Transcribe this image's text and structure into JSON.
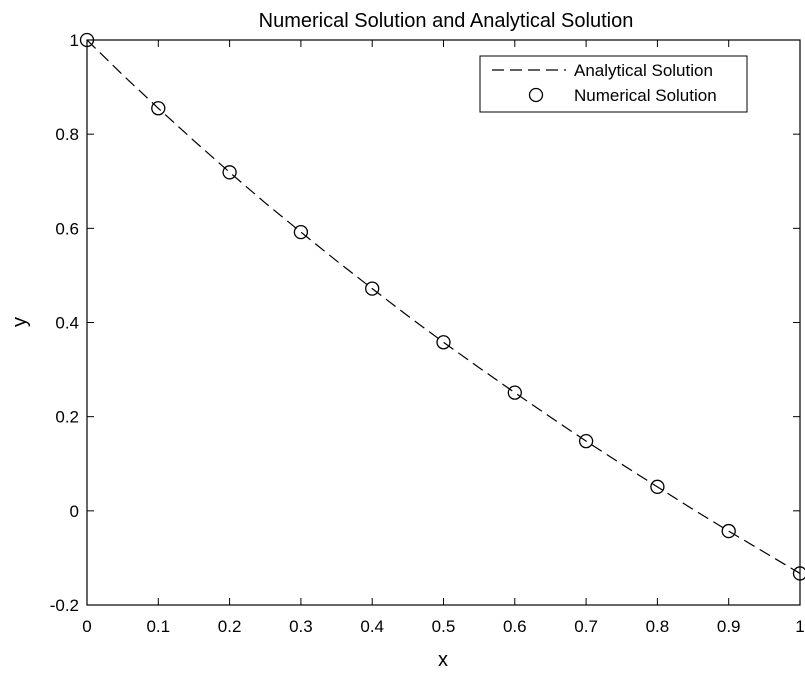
{
  "chart_data": {
    "type": "line",
    "title": "Numerical Solution and Analytical Solution",
    "xlabel": "x",
    "ylabel": "y",
    "xlim": [
      0,
      1
    ],
    "ylim": [
      -0.2,
      1
    ],
    "grid": false,
    "legend_position": "top-right",
    "x_ticks": [
      "0",
      "0.1",
      "0.2",
      "0.3",
      "0.4",
      "0.5",
      "0.6",
      "0.7",
      "0.8",
      "0.9",
      "1"
    ],
    "y_ticks": [
      "-0.2",
      "0",
      "0.2",
      "0.4",
      "0.6",
      "0.8",
      "1"
    ],
    "series": [
      {
        "name": "Analytical Solution",
        "style": "dashed-line",
        "color": "#000000",
        "x": [
          0,
          0.05,
          0.1,
          0.15,
          0.2,
          0.25,
          0.3,
          0.35,
          0.4,
          0.45,
          0.5,
          0.55,
          0.6,
          0.65,
          0.7,
          0.75,
          0.8,
          0.85,
          0.9,
          0.95,
          1.0
        ],
        "y": [
          1.0,
          0.926,
          0.855,
          0.786,
          0.719,
          0.654,
          0.592,
          0.531,
          0.472,
          0.414,
          0.358,
          0.304,
          0.251,
          0.199,
          0.148,
          0.099,
          0.051,
          0.003,
          -0.043,
          -0.088,
          -0.133
        ]
      },
      {
        "name": "Numerical Solution",
        "style": "open-circle-markers",
        "color": "#000000",
        "x": [
          0,
          0.1,
          0.2,
          0.3,
          0.4,
          0.5,
          0.6,
          0.7,
          0.8,
          0.9,
          1.0
        ],
        "y": [
          1.0,
          0.855,
          0.719,
          0.592,
          0.472,
          0.358,
          0.251,
          0.148,
          0.051,
          -0.043,
          -0.133
        ]
      }
    ]
  }
}
